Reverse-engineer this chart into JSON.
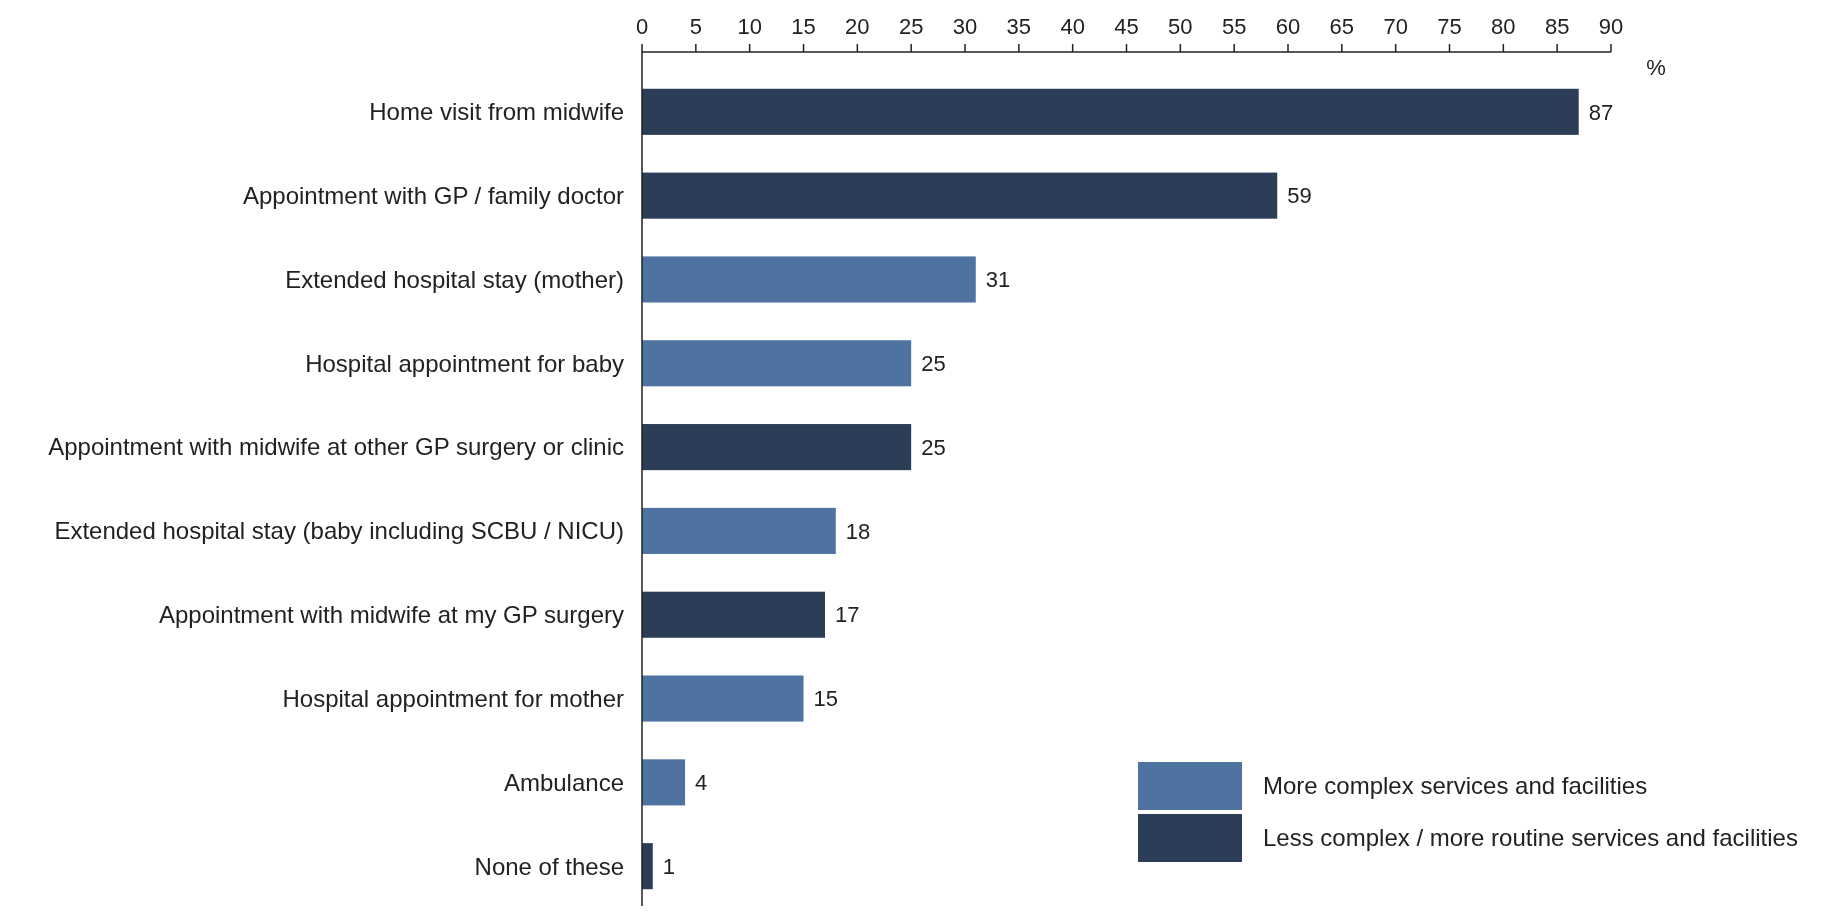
{
  "chart_data": {
    "type": "bar",
    "orientation": "horizontal",
    "xlabel": "%",
    "categories": [
      "Home visit from midwife",
      "Appointment with GP / family doctor",
      "Extended hospital stay (mother)",
      "Hospital appointment for baby",
      "Appointment with midwife at other GP surgery or clinic",
      "Extended hospital stay (baby including SCBU / NICU)",
      "Appointment with midwife at my GP surgery",
      "Hospital appointment for mother",
      "Ambulance",
      "None of these"
    ],
    "series": [
      {
        "name": "More complex services and facilities",
        "color": "#4f73a0",
        "values": [
          null,
          null,
          31,
          25,
          null,
          18,
          null,
          15,
          4,
          null
        ]
      },
      {
        "name": "Less complex / more routine services and facilities",
        "color": "#2b3d57",
        "values": [
          87,
          59,
          null,
          null,
          25,
          null,
          17,
          null,
          null,
          1
        ]
      }
    ],
    "xlim": [
      0,
      90
    ],
    "xticks": [
      0,
      5,
      10,
      15,
      20,
      25,
      30,
      35,
      40,
      45,
      50,
      55,
      60,
      65,
      70,
      75,
      80,
      85,
      90
    ],
    "data_labels": true,
    "grid": false,
    "legend": "bottom right"
  }
}
